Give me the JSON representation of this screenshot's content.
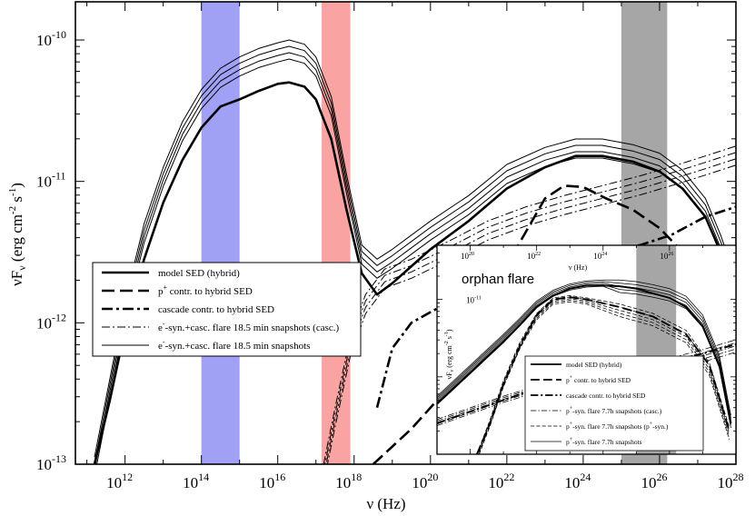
{
  "chart_data": {
    "type": "line",
    "title": "",
    "xlabel": "ν (Hz)",
    "ylabel": "νF_ν (erg cm^-2 s^-1)",
    "x_scale": "log",
    "y_scale": "log",
    "xlim_log10": [
      10.7,
      28.0
    ],
    "ylim_log10": [
      -13.0,
      -9.73
    ],
    "x_ticks": [
      {
        "exp": 12,
        "text": "10",
        "sup": "12"
      },
      {
        "exp": 14,
        "text": "10",
        "sup": "14"
      },
      {
        "exp": 16,
        "text": "10",
        "sup": "16"
      },
      {
        "exp": 18,
        "text": "10",
        "sup": "18"
      },
      {
        "exp": 20,
        "text": "10",
        "sup": "20"
      },
      {
        "exp": 22,
        "text": "10",
        "sup": "22"
      },
      {
        "exp": 24,
        "text": "10",
        "sup": "24"
      },
      {
        "exp": 26,
        "text": "10",
        "sup": "26"
      },
      {
        "exp": 28,
        "text": "10",
        "sup": "28"
      }
    ],
    "y_ticks": [
      {
        "exp": -10,
        "text": "10",
        "sup": "-10"
      },
      {
        "exp": -11,
        "text": "10",
        "sup": "-11"
      },
      {
        "exp": -12,
        "text": "10",
        "sup": "-12"
      },
      {
        "exp": -13,
        "text": "10",
        "sup": "-13"
      }
    ],
    "bands": [
      {
        "name": "optical-band",
        "x_log": [
          14.0,
          15.0
        ],
        "color": "#a0a0f4"
      },
      {
        "name": "xray-band",
        "x_log": [
          17.15,
          17.9
        ],
        "color": "#f9a3a3"
      },
      {
        "name": "gamma-band",
        "x_log": [
          25.0,
          26.2
        ],
        "color": "#a6a6a6"
      }
    ],
    "series": [
      {
        "name": "model SED (hybrid)",
        "style": "solid-thick",
        "points": [
          [
            11.2,
            -13.0
          ],
          [
            11.6,
            -12.55
          ],
          [
            12.0,
            -12.05
          ],
          [
            12.5,
            -11.55
          ],
          [
            13.0,
            -11.15
          ],
          [
            13.5,
            -10.85
          ],
          [
            14.0,
            -10.62
          ],
          [
            14.5,
            -10.47
          ],
          [
            15.0,
            -10.42
          ],
          [
            15.5,
            -10.36
          ],
          [
            16.0,
            -10.31
          ],
          [
            16.3,
            -10.3
          ],
          [
            16.7,
            -10.33
          ],
          [
            17.0,
            -10.42
          ],
          [
            17.4,
            -10.7
          ],
          [
            17.8,
            -11.2
          ],
          [
            18.2,
            -11.65
          ],
          [
            18.6,
            -11.8
          ],
          [
            19.0,
            -11.72
          ],
          [
            19.5,
            -11.6
          ],
          [
            20.0,
            -11.48
          ],
          [
            21.0,
            -11.28
          ],
          [
            22.0,
            -11.05
          ],
          [
            23.0,
            -10.9
          ],
          [
            23.8,
            -10.82
          ],
          [
            24.5,
            -10.82
          ],
          [
            25.3,
            -10.86
          ],
          [
            26.0,
            -10.93
          ],
          [
            26.6,
            -11.05
          ],
          [
            27.2,
            -11.25
          ],
          [
            27.6,
            -11.5
          ],
          [
            27.95,
            -11.78
          ]
        ]
      },
      {
        "name": "p+ contr. to hybrid SED",
        "style": "dashed-thick",
        "points": [
          [
            18.5,
            -13.0
          ],
          [
            19.5,
            -12.75
          ],
          [
            20.5,
            -12.45
          ],
          [
            21.5,
            -11.85
          ],
          [
            22.3,
            -11.45
          ],
          [
            23.0,
            -11.12
          ],
          [
            23.5,
            -11.03
          ],
          [
            24.0,
            -11.04
          ],
          [
            24.6,
            -11.12
          ],
          [
            25.3,
            -11.2
          ],
          [
            26.0,
            -11.33
          ],
          [
            26.6,
            -11.5
          ],
          [
            27.2,
            -11.95
          ],
          [
            27.9,
            -12.5
          ]
        ]
      },
      {
        "name": "cascade contr. to hybrid SED",
        "style": "dashdot-thick",
        "points": [
          [
            18.6,
            -12.6
          ],
          [
            19.0,
            -12.18
          ],
          [
            19.5,
            -12.0
          ],
          [
            20.5,
            -11.85
          ],
          [
            21.5,
            -11.72
          ],
          [
            22.5,
            -11.62
          ],
          [
            23.5,
            -11.55
          ],
          [
            24.5,
            -11.5
          ],
          [
            25.5,
            -11.45
          ],
          [
            26.3,
            -11.38
          ],
          [
            27.2,
            -11.25
          ],
          [
            28.0,
            -11.18
          ]
        ]
      },
      {
        "name": "e--syn.+casc. flare 18.5 min snapshots (casc.)",
        "style": "dashdot-thin",
        "points": [
          [
            17.2,
            -13.0
          ],
          [
            17.5,
            -12.6
          ],
          [
            17.9,
            -12.1
          ],
          [
            18.3,
            -11.8
          ],
          [
            18.8,
            -11.62
          ],
          [
            19.5,
            -11.55
          ],
          [
            20.5,
            -11.42
          ],
          [
            21.5,
            -11.28
          ],
          [
            22.5,
            -11.18
          ],
          [
            23.5,
            -11.1
          ],
          [
            24.5,
            -11.03
          ],
          [
            25.5,
            -10.96
          ],
          [
            26.5,
            -10.88
          ],
          [
            27.2,
            -10.82
          ],
          [
            28.0,
            -10.75
          ]
        ]
      },
      {
        "name": "e--syn.+casc. flare 18.5 min snapshots",
        "style": "solid-thin",
        "points": [
          [
            11.2,
            -12.95
          ],
          [
            11.6,
            -12.4
          ],
          [
            12.0,
            -11.85
          ],
          [
            12.5,
            -11.3
          ],
          [
            13.0,
            -10.9
          ],
          [
            13.5,
            -10.58
          ],
          [
            14.0,
            -10.35
          ],
          [
            14.5,
            -10.2
          ],
          [
            15.0,
            -10.12
          ],
          [
            15.5,
            -10.06
          ],
          [
            16.0,
            -10.02
          ],
          [
            16.3,
            -10.0
          ],
          [
            16.7,
            -10.03
          ],
          [
            17.0,
            -10.12
          ],
          [
            17.4,
            -10.4
          ],
          [
            17.8,
            -10.95
          ],
          [
            18.2,
            -11.45
          ],
          [
            18.6,
            -11.55
          ],
          [
            19.0,
            -11.48
          ],
          [
            19.5,
            -11.38
          ],
          [
            20.0,
            -11.28
          ],
          [
            21.0,
            -11.1
          ],
          [
            22.0,
            -10.88
          ],
          [
            23.0,
            -10.76
          ],
          [
            23.8,
            -10.7
          ],
          [
            24.5,
            -10.7
          ],
          [
            25.3,
            -10.74
          ],
          [
            26.0,
            -10.8
          ],
          [
            26.6,
            -10.92
          ],
          [
            27.2,
            -11.12
          ],
          [
            27.6,
            -11.38
          ],
          [
            27.95,
            -11.65
          ]
        ]
      }
    ],
    "legend": {
      "placement": "left-middle",
      "entries": [
        {
          "style": "solid-thick",
          "label": "model SED (hybrid)"
        },
        {
          "style": "dashed-thick",
          "prefix": "p",
          "sup": "+",
          "label": " contr. to hybrid SED"
        },
        {
          "style": "dashdot-thick",
          "label": "cascade contr. to hybrid SED"
        },
        {
          "style": "dashdot-thin",
          "prefix": "e",
          "sup": "-",
          "label": "-syn.+casc. flare 18.5 min snapshots (casc.)"
        },
        {
          "style": "solid-thin",
          "prefix": "e",
          "sup": "-",
          "label": "-syn.+casc. flare 18.5 min snapshots"
        }
      ]
    },
    "inset": {
      "title": "orphan flare",
      "xlabel": "ν (Hz)",
      "ylabel": "νF_ν (erg cm^-2 s^-1)",
      "xlim_log10": [
        19.0,
        28.0
      ],
      "ylim_log10": [
        -13.0,
        -10.3
      ],
      "x_ticks": [
        {
          "exp": 20,
          "text": "10",
          "sup": "20"
        },
        {
          "exp": 22,
          "text": "10",
          "sup": "22"
        },
        {
          "exp": 24,
          "text": "10",
          "sup": "24"
        },
        {
          "exp": 26,
          "text": "10",
          "sup": "26"
        }
      ],
      "y_ticks": [
        {
          "exp": -11,
          "text": "10",
          "sup": "-11"
        }
      ],
      "band": {
        "x_log": [
          25.0,
          26.2
        ],
        "color": "#a6a6a6"
      },
      "series": [
        {
          "name": "model SED (hybrid)",
          "style": "solid-thick",
          "points": [
            [
              19.0,
              -12.35
            ],
            [
              19.5,
              -12.15
            ],
            [
              20.0,
              -11.95
            ],
            [
              20.5,
              -11.75
            ],
            [
              21.0,
              -11.55
            ],
            [
              21.5,
              -11.33
            ],
            [
              22.0,
              -11.1
            ],
            [
              22.5,
              -10.95
            ],
            [
              23.0,
              -10.86
            ],
            [
              23.5,
              -10.82
            ],
            [
              24.0,
              -10.82
            ],
            [
              24.5,
              -10.83
            ],
            [
              25.0,
              -10.86
            ],
            [
              25.5,
              -10.92
            ],
            [
              26.0,
              -10.98
            ],
            [
              26.5,
              -11.1
            ],
            [
              27.0,
              -11.35
            ],
            [
              27.5,
              -11.85
            ],
            [
              27.85,
              -12.6
            ]
          ]
        },
        {
          "name": "p+ contr. to hybrid SED",
          "style": "dashed-thick",
          "points": [
            [
              20.2,
              -13.0
            ],
            [
              20.6,
              -12.6
            ],
            [
              21.0,
              -12.1
            ],
            [
              21.5,
              -11.6
            ],
            [
              22.0,
              -11.2
            ],
            [
              22.5,
              -11.0
            ],
            [
              23.0,
              -10.97
            ],
            [
              23.5,
              -11.0
            ],
            [
              24.5,
              -11.1
            ],
            [
              25.5,
              -11.22
            ],
            [
              26.5,
              -11.45
            ],
            [
              27.2,
              -11.85
            ],
            [
              27.8,
              -12.7
            ]
          ]
        },
        {
          "name": "cascade contr. to hybrid SED",
          "style": "dashdot-thick",
          "points": [
            [
              19.0,
              -12.6
            ],
            [
              20.0,
              -12.45
            ],
            [
              21.0,
              -12.3
            ],
            [
              22.0,
              -12.15
            ],
            [
              23.0,
              -12.05
            ],
            [
              24.0,
              -11.95
            ],
            [
              25.0,
              -11.88
            ],
            [
              26.0,
              -11.8
            ],
            [
              27.0,
              -11.7
            ],
            [
              28.0,
              -11.58
            ]
          ]
        },
        {
          "name": "p+-syn. flare 7.7h snapshots (casc.)",
          "style": "dashdot-thin",
          "points": [
            [
              19.0,
              -12.55
            ],
            [
              20.0,
              -12.4
            ],
            [
              21.0,
              -12.25
            ],
            [
              22.0,
              -12.12
            ],
            [
              23.0,
              -12.02
            ],
            [
              24.0,
              -11.92
            ],
            [
              25.0,
              -11.84
            ],
            [
              26.0,
              -11.76
            ],
            [
              27.0,
              -11.65
            ],
            [
              28.0,
              -11.52
            ]
          ]
        },
        {
          "name": "p+-syn. flare 7.7h snapshots (p+-syn.)",
          "style": "dashed-thin",
          "points": [
            [
              20.2,
              -13.0
            ],
            [
              20.6,
              -12.55
            ],
            [
              21.0,
              -12.05
            ],
            [
              21.5,
              -11.55
            ],
            [
              22.0,
              -11.18
            ],
            [
              22.5,
              -10.98
            ],
            [
              23.0,
              -10.95
            ],
            [
              23.5,
              -10.98
            ],
            [
              24.5,
              -11.06
            ],
            [
              25.5,
              -11.18
            ],
            [
              26.5,
              -11.4
            ],
            [
              27.2,
              -11.82
            ],
            [
              27.8,
              -12.65
            ]
          ]
        },
        {
          "name": "p+-syn. flare 7.7h snapshots",
          "style": "solid-thin",
          "points": [
            [
              19.0,
              -12.25
            ],
            [
              19.5,
              -12.05
            ],
            [
              20.0,
              -11.85
            ],
            [
              20.5,
              -11.65
            ],
            [
              21.0,
              -11.45
            ],
            [
              21.5,
              -11.24
            ],
            [
              22.0,
              -11.02
            ],
            [
              22.5,
              -10.88
            ],
            [
              23.0,
              -10.8
            ],
            [
              23.5,
              -10.76
            ],
            [
              24.0,
              -10.75
            ],
            [
              24.5,
              -10.75
            ],
            [
              25.0,
              -10.77
            ],
            [
              25.5,
              -10.81
            ],
            [
              26.0,
              -10.86
            ],
            [
              26.5,
              -10.96
            ],
            [
              27.0,
              -11.2
            ],
            [
              27.5,
              -11.72
            ],
            [
              27.85,
              -12.5
            ]
          ]
        }
      ],
      "legend": {
        "placement": "bottom-right",
        "entries": [
          {
            "style": "solid-thick",
            "label": "model SED (hybrid)"
          },
          {
            "style": "dashed-thick",
            "prefix": "p",
            "sup": "+",
            "label": " contr. to hybrid SED"
          },
          {
            "style": "dashdot-thick",
            "label": "cascade contr. to hybrid SED"
          },
          {
            "style": "dashdot-thin",
            "prefix": "p",
            "sup": "+",
            "label": "-syn. flare 7.7h snapshots (casc.)"
          },
          {
            "style": "dashed-thin",
            "prefix": "p",
            "sup": "+",
            "label": "-syn. flare 7.7h snapshots (p",
            "sup2": "+",
            "suffix": "-syn.)"
          },
          {
            "style": "solid-thin",
            "prefix": "p",
            "sup": "+",
            "label": "-syn. flare 7.7h snapshots"
          }
        ]
      }
    }
  }
}
